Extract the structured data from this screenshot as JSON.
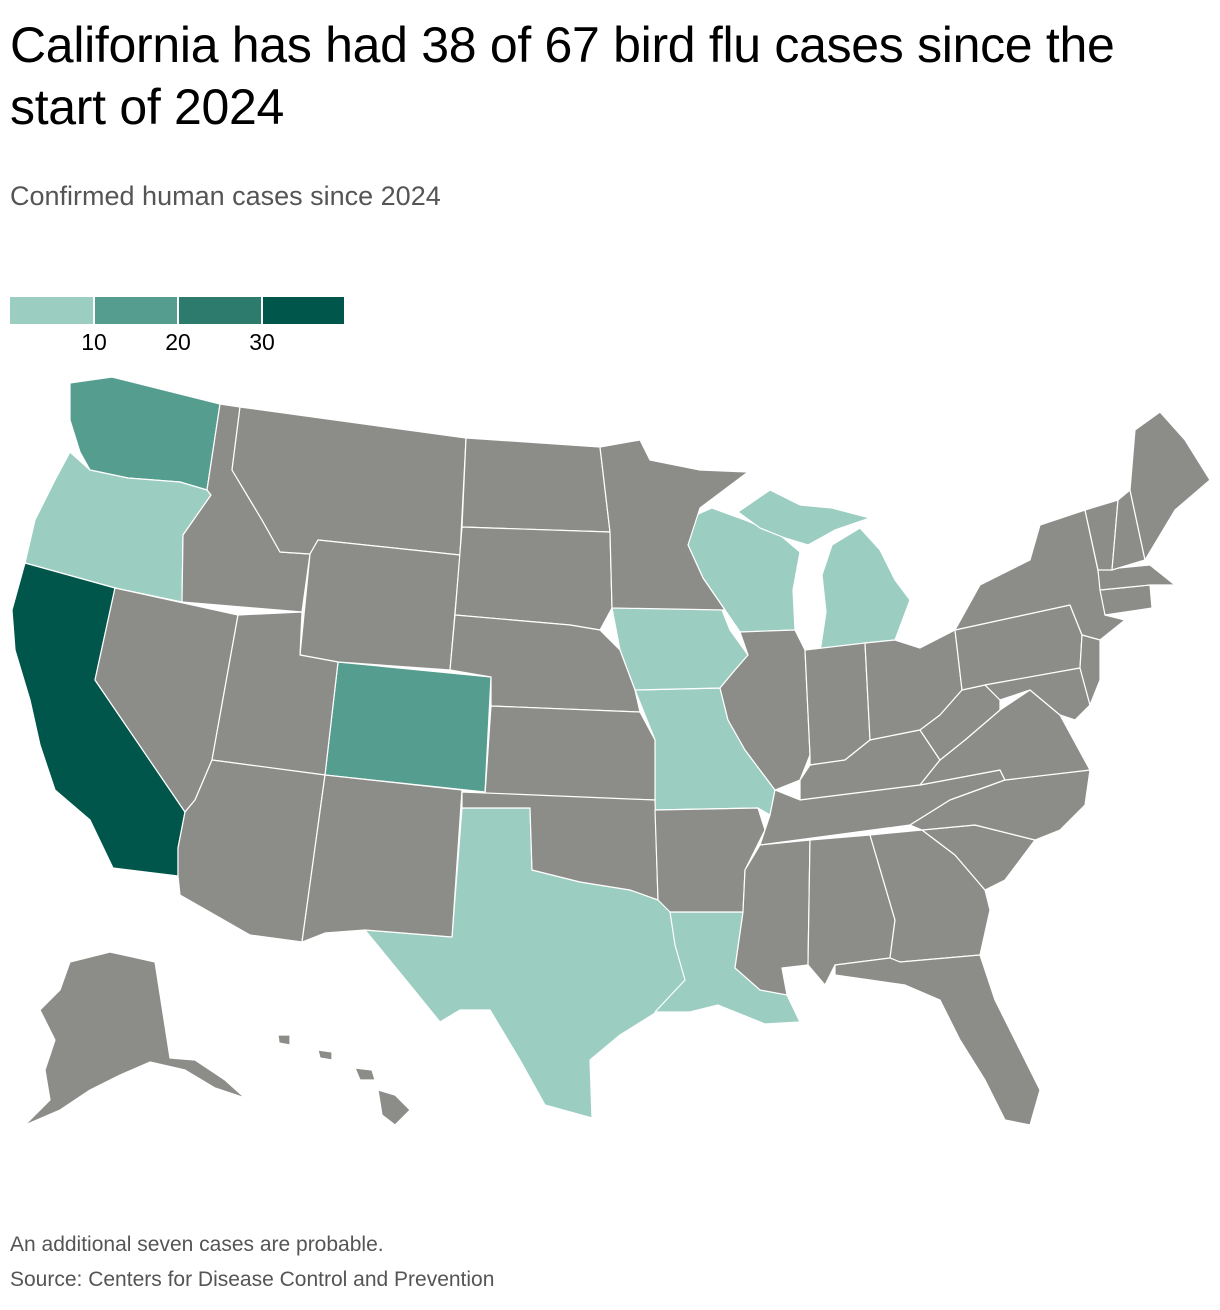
{
  "header": {
    "title": "California has had 38 of 67 bird flu cases since the start of 2024",
    "subtitle": "Confirmed human cases since 2024"
  },
  "legend": {
    "colors": [
      "#9bcdc1",
      "#559d8f",
      "#2d7b6c",
      "#00564a"
    ],
    "labels": [
      "10",
      "20",
      "30"
    ]
  },
  "map": {
    "region": "United States",
    "no_cases_color": "#8c8c88",
    "highlighted_states": [
      {
        "state": "California",
        "color": "#00564a"
      },
      {
        "state": "Washington",
        "color": "#559d8f"
      },
      {
        "state": "Colorado",
        "color": "#559d8f"
      },
      {
        "state": "Oregon",
        "color": "#9bcdc1"
      },
      {
        "state": "Texas",
        "color": "#9bcdc1"
      },
      {
        "state": "Louisiana",
        "color": "#9bcdc1"
      },
      {
        "state": "Missouri",
        "color": "#9bcdc1"
      },
      {
        "state": "Iowa",
        "color": "#9bcdc1"
      },
      {
        "state": "Wisconsin",
        "color": "#9bcdc1"
      },
      {
        "state": "Michigan",
        "color": "#9bcdc1"
      }
    ]
  },
  "footer": {
    "note": "An additional seven cases are probable.",
    "source": "Source: Centers for Disease Control and Prevention"
  }
}
